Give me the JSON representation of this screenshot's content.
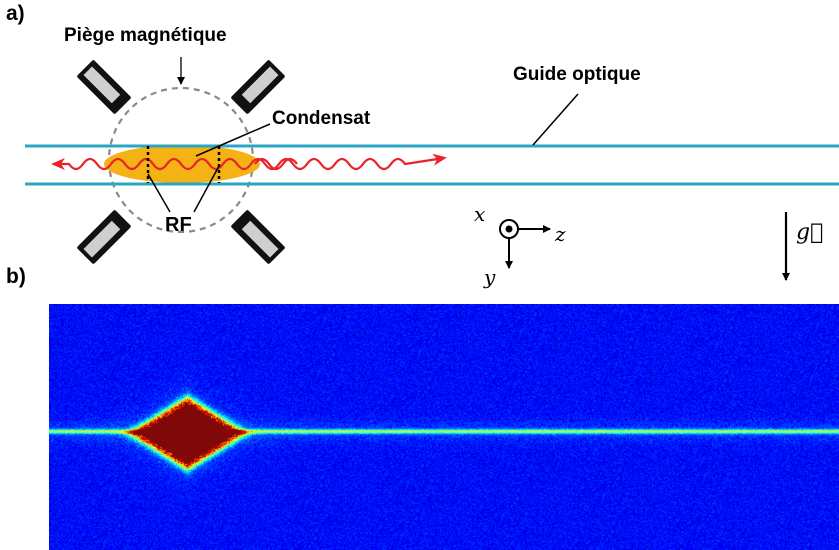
{
  "panel_a": {
    "label": "a)",
    "trap_label": "Piège magnétique",
    "guide_label": "Guide optique",
    "condensate_label": "Condensat",
    "rf_label": "RF",
    "axes": {
      "x": "x",
      "y": "y",
      "z": "z",
      "gravity": "g⃗"
    }
  },
  "panel_b": {
    "label": "b)"
  },
  "colors": {
    "guide": "#2aa6c4",
    "condensate": "#f5b214",
    "wave": "#e8242a",
    "image_background": "#1a3e9e",
    "atom_core": "#8a0a0a"
  }
}
